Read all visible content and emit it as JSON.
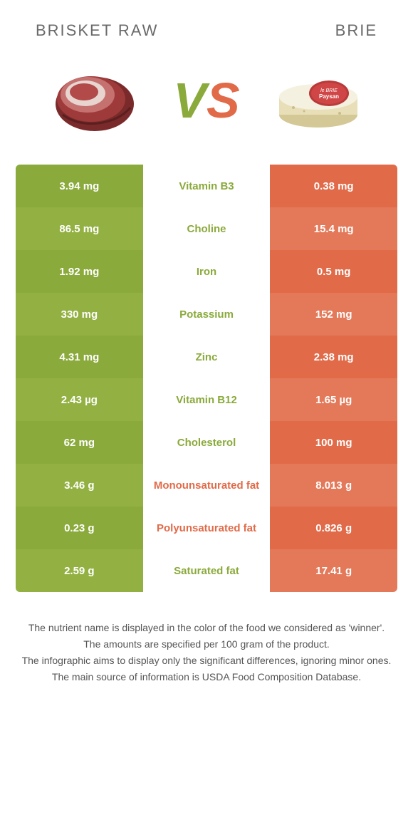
{
  "header": {
    "left_title": "BRISKET RAW",
    "right_title": "BRIE"
  },
  "vs": {
    "v": "V",
    "s": "S"
  },
  "colors": {
    "left_food": "#8aaa3b",
    "right_food": "#e16a48",
    "left_alt": "#93b142",
    "right_alt": "#e4795a",
    "mid_bg": "#ffffff"
  },
  "rows": [
    {
      "left": "3.94 mg",
      "mid": "Vitamin B3",
      "right": "0.38 mg",
      "winner": "left"
    },
    {
      "left": "86.5 mg",
      "mid": "Choline",
      "right": "15.4 mg",
      "winner": "left"
    },
    {
      "left": "1.92 mg",
      "mid": "Iron",
      "right": "0.5 mg",
      "winner": "left"
    },
    {
      "left": "330 mg",
      "mid": "Potassium",
      "right": "152 mg",
      "winner": "left"
    },
    {
      "left": "4.31 mg",
      "mid": "Zinc",
      "right": "2.38 mg",
      "winner": "left"
    },
    {
      "left": "2.43 µg",
      "mid": "Vitamin B12",
      "right": "1.65 µg",
      "winner": "left"
    },
    {
      "left": "62 mg",
      "mid": "Cholesterol",
      "right": "100 mg",
      "winner": "left"
    },
    {
      "left": "3.46 g",
      "mid": "Monounsaturated fat",
      "right": "8.013 g",
      "winner": "right"
    },
    {
      "left": "0.23 g",
      "mid": "Polyunsaturated fat",
      "right": "0.826 g",
      "winner": "right"
    },
    {
      "left": "2.59 g",
      "mid": "Saturated fat",
      "right": "17.41 g",
      "winner": "left"
    }
  ],
  "footer": {
    "line1": "The nutrient name is displayed in the color of the food we considered as 'winner'.",
    "line2": "The amounts are specified per 100 gram of the product.",
    "line3": "The infographic aims to display only the significant differences, ignoring minor ones.",
    "line4": "The main source of information is USDA Food Composition Database."
  }
}
